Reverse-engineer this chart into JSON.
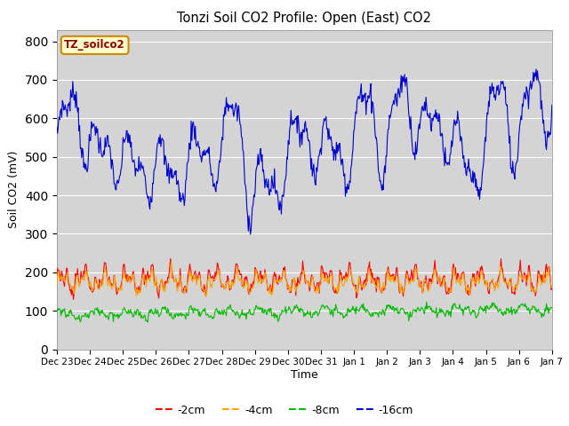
{
  "title": "Tonzi Soil CO2 Profile: Open (East) CO2",
  "ylabel": "Soil CO2 (mV)",
  "xlabel": "Time",
  "ylim": [
    0,
    830
  ],
  "yticks": [
    0,
    100,
    200,
    300,
    400,
    500,
    600,
    700,
    800
  ],
  "bg_color": "#d4d4d4",
  "fig_color": "#ffffff",
  "line_colors": {
    "-2cm": "#ff0000",
    "-4cm": "#ffa500",
    "-8cm": "#00bb00",
    "-16cm": "#0000cc"
  },
  "legend_label": "TZ_soilco2",
  "legend_bg": "#ffffcc",
  "legend_border": "#cc8800",
  "n_points": 720,
  "x_start": 0,
  "x_end": 15,
  "xtick_positions": [
    0,
    1,
    2,
    3,
    4,
    5,
    6,
    7,
    8,
    9,
    10,
    11,
    12,
    13,
    14,
    15
  ],
  "xtick_labels": [
    "Dec 23",
    "Dec 24",
    "Dec 25",
    "Dec 26",
    "Dec 27",
    "Dec 28",
    "Dec 29",
    "Dec 30",
    "Dec 31",
    "Jan 1",
    "Jan 2",
    "Jan 3",
    "Jan 4",
    "Jan 5",
    "Jan 6",
    "Jan 7"
  ]
}
